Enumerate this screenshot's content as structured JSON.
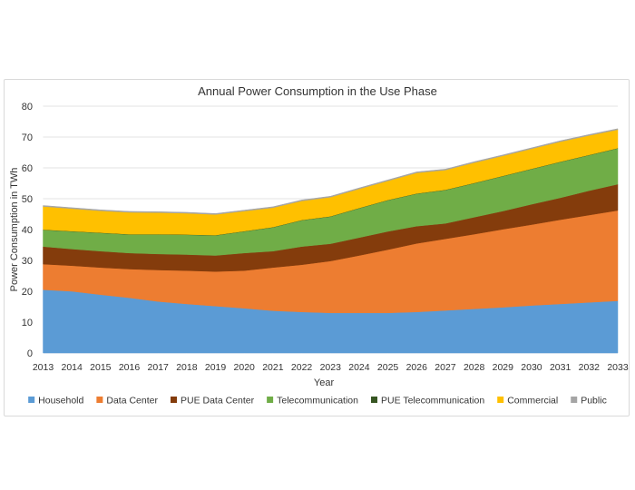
{
  "chart_data": {
    "type": "area",
    "stacked": true,
    "title": "Annual Power Consumption in the Use Phase",
    "xlabel": "Year",
    "ylabel": "Power Consumption in TWh",
    "ylim": [
      0,
      80
    ],
    "yticks": [
      0,
      10,
      20,
      30,
      40,
      50,
      60,
      70,
      80
    ],
    "grid": true,
    "legend_position": "bottom",
    "categories": [
      "2013",
      "2014",
      "2015",
      "2016",
      "2017",
      "2018",
      "2019",
      "2020",
      "2021",
      "2022",
      "2023",
      "2024",
      "2025",
      "2026",
      "2027",
      "2028",
      "2029",
      "2030",
      "2031",
      "2032",
      "2033"
    ],
    "series": [
      {
        "name": "Household",
        "color": "#5b9bd5",
        "values": [
          20.5,
          20.0,
          18.9,
          17.9,
          16.7,
          15.9,
          15.2,
          14.5,
          13.7,
          13.3,
          13.0,
          13.0,
          13.0,
          13.3,
          13.8,
          14.3,
          14.8,
          15.4,
          15.9,
          16.4,
          16.9
        ]
      },
      {
        "name": "Data Center",
        "color": "#ed7d31",
        "values": [
          8.3,
          8.3,
          8.8,
          9.3,
          10.2,
          10.8,
          11.2,
          12.2,
          14.0,
          15.3,
          16.8,
          18.6,
          20.5,
          22.2,
          23.2,
          24.2,
          25.3,
          26.2,
          27.3,
          28.3,
          29.3
        ]
      },
      {
        "name": "PUE Data Center",
        "color": "#843c0c",
        "values": [
          5.7,
          5.4,
          5.3,
          5.2,
          5.2,
          5.2,
          5.2,
          5.7,
          5.3,
          5.9,
          5.6,
          5.8,
          5.9,
          5.6,
          5.0,
          5.5,
          5.9,
          6.6,
          7.1,
          7.9,
          8.5
        ]
      },
      {
        "name": "Telecommunication",
        "color": "#70ad47",
        "values": [
          5.4,
          5.7,
          5.9,
          6.0,
          6.3,
          6.4,
          6.5,
          7.0,
          7.7,
          8.5,
          8.8,
          9.5,
          10.1,
          10.5,
          10.8,
          11.0,
          11.3,
          11.4,
          11.6,
          11.5,
          11.6
        ]
      },
      {
        "name": "PUE Telecommunication",
        "color": "#375623",
        "values": [
          0.1,
          0.1,
          0.1,
          0.1,
          0.1,
          0.1,
          0.1,
          0.1,
          0.1,
          0.1,
          0.1,
          0.1,
          0.1,
          0.1,
          0.1,
          0.1,
          0.1,
          0.1,
          0.1,
          0.1,
          0.1
        ]
      },
      {
        "name": "Commercial",
        "color": "#ffc000",
        "values": [
          7.5,
          7.3,
          7.1,
          7.1,
          7.0,
          6.9,
          6.7,
          6.5,
          6.3,
          6.2,
          6.2,
          6.2,
          6.2,
          6.7,
          6.4,
          6.6,
          6.5,
          6.5,
          6.5,
          6.3,
          6.0
        ]
      },
      {
        "name": "Public",
        "color": "#a5a5a5",
        "values": [
          0.3,
          0.3,
          0.3,
          0.3,
          0.3,
          0.3,
          0.3,
          0.3,
          0.3,
          0.3,
          0.3,
          0.3,
          0.3,
          0.3,
          0.3,
          0.3,
          0.3,
          0.3,
          0.3,
          0.3,
          0.3
        ]
      }
    ]
  }
}
